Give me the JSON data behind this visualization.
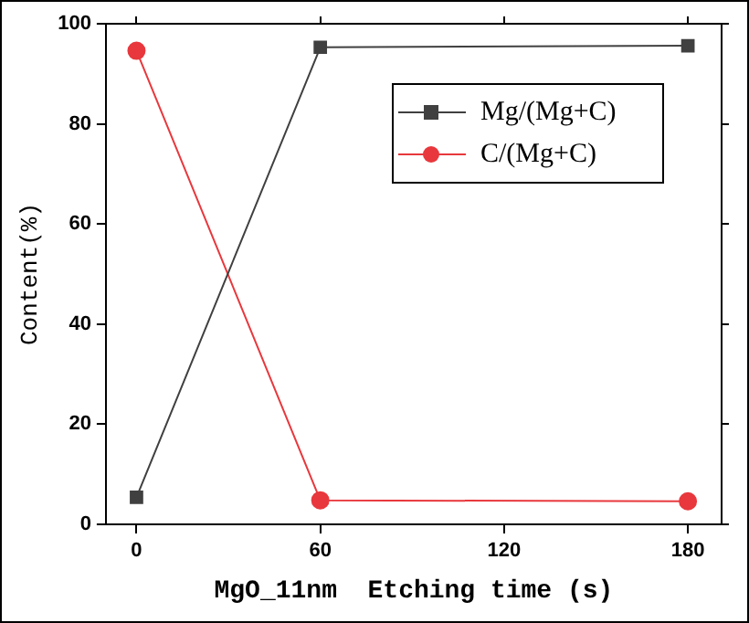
{
  "chart_data": {
    "type": "line",
    "xlabel": "MgO_11nm  Etching time (s)",
    "ylabel": "Content(%)",
    "x": [
      0,
      60,
      180
    ],
    "series": [
      {
        "name": "Mg/(Mg+C)",
        "color": "#404040",
        "values": [
          5.4,
          95.3,
          95.6
        ],
        "marker": "square"
      },
      {
        "name": "C/(Mg+C)",
        "color": "#e8383d",
        "values": [
          94.6,
          4.8,
          4.6
        ],
        "marker": "circle"
      }
    ],
    "xlim": [
      -10,
      191
    ],
    "xticks": [
      0,
      60,
      120,
      180
    ],
    "ylim": [
      0,
      100
    ],
    "yticks": [
      0,
      20,
      40,
      60,
      80,
      100
    ],
    "grid": false,
    "legend": "top right",
    "line_style": "solid"
  }
}
